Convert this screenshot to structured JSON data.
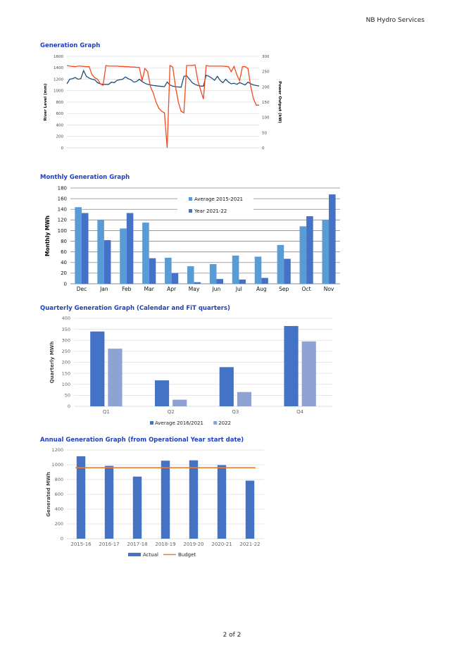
{
  "header": {
    "company": "NB Hydro Services"
  },
  "footer": {
    "page": "2 of 2"
  },
  "chart_data": [
    {
      "id": "gen",
      "type": "line",
      "title": "Generation Graph",
      "ylabel": "River Level (mm)",
      "y2label": "Power Output (kW)",
      "ylim": [
        0,
        1600
      ],
      "y2lim": [
        0,
        300
      ],
      "yticks": [
        0,
        200,
        400,
        600,
        800,
        1000,
        1200,
        1400,
        1600
      ],
      "y2ticks": [
        0,
        50,
        100,
        150,
        200,
        250,
        300
      ],
      "series": [
        {
          "name": "River Level",
          "axis": "left",
          "color": "#1f4e79",
          "values": [
            1120,
            1200,
            1210,
            1230,
            1200,
            1210,
            1350,
            1250,
            1220,
            1200,
            1190,
            1140,
            1120,
            1110,
            1110,
            1110,
            1150,
            1140,
            1180,
            1190,
            1200,
            1240,
            1210,
            1190,
            1150,
            1160,
            1200,
            1160,
            1130,
            1110,
            1100,
            1090,
            1085,
            1080,
            1075,
            1070,
            1150,
            1100,
            1080,
            1070,
            1065,
            1060,
            1250,
            1260,
            1200,
            1140,
            1110,
            1090,
            1080,
            1080,
            1270,
            1250,
            1220,
            1180,
            1250,
            1180,
            1140,
            1200,
            1150,
            1120,
            1130,
            1110,
            1140,
            1120,
            1100,
            1150,
            1120,
            1100,
            1090,
            1080
          ]
        },
        {
          "name": "Power Output",
          "axis": "right",
          "color": "#f24a1e",
          "values": [
            270,
            268,
            267,
            266,
            268,
            268,
            267,
            266,
            266,
            240,
            230,
            225,
            210,
            205,
            270,
            268,
            268,
            268,
            268,
            267,
            267,
            266,
            266,
            265,
            265,
            264,
            264,
            220,
            260,
            250,
            200,
            180,
            150,
            130,
            120,
            115,
            0,
            270,
            265,
            200,
            150,
            120,
            115,
            270,
            270,
            270,
            272,
            220,
            190,
            160,
            270,
            268,
            268,
            268,
            268,
            268,
            268,
            267,
            266,
            250,
            267,
            240,
            220,
            266,
            266,
            260,
            200,
            160,
            140,
            140
          ]
        }
      ]
    },
    {
      "id": "monthly",
      "type": "bar",
      "title": "Monthly Generation Graph",
      "ylabel": "Monthly MWh",
      "ylim": [
        0,
        180
      ],
      "yticks": [
        0,
        20,
        40,
        60,
        80,
        100,
        120,
        140,
        160,
        180
      ],
      "categories": [
        "Dec",
        "Jan",
        "Feb",
        "Mar",
        "Apr",
        "May",
        "Jun",
        "Jul",
        "Aug",
        "Sep",
        "Oct",
        "Nov"
      ],
      "legend": "top-center",
      "series": [
        {
          "name": "Average 2015-2021",
          "color": "#5b9bd5",
          "values": [
            144,
            120,
            104,
            115,
            49,
            33,
            37,
            53,
            51,
            73,
            108,
            120
          ]
        },
        {
          "name": "Year 2021-22",
          "color": "#4472c4",
          "values": [
            133,
            82,
            133,
            48,
            20,
            3,
            9,
            8,
            11,
            47,
            127,
            168
          ]
        }
      ]
    },
    {
      "id": "quarterly",
      "type": "bar",
      "title": "Quarterly Generation Graph (Calendar and FiT quarters)",
      "ylabel": "Quarterly MWh",
      "ylim": [
        0,
        400
      ],
      "yticks": [
        0,
        50,
        100,
        150,
        200,
        250,
        300,
        350,
        400
      ],
      "categories": [
        "Q1",
        "Q2",
        "Q3",
        "Q4"
      ],
      "legend": "bottom",
      "series": [
        {
          "name": "Average 2016/2021",
          "color": "#4472c4",
          "values": [
            340,
            118,
            178,
            365
          ]
        },
        {
          "name": "2022",
          "color": "#8fa2d4",
          "values": [
            262,
            30,
            65,
            295
          ]
        }
      ]
    },
    {
      "id": "annual",
      "type": "bar",
      "title": "Annual Generation Graph (from Operational Year start date)",
      "ylabel": "Generated MWh",
      "ylim": [
        0,
        1200
      ],
      "yticks": [
        0,
        200,
        400,
        600,
        800,
        1000,
        1200
      ],
      "categories": [
        "2015-16",
        "2016-17",
        "2017-18",
        "2018-19",
        "2019-20",
        "2020-21",
        "2021-22"
      ],
      "legend": "bottom",
      "series": [
        {
          "name": "Actual",
          "color": "#4472c4",
          "values": [
            1115,
            985,
            840,
            1055,
            1060,
            995,
            785
          ]
        }
      ],
      "budget": {
        "name": "Budget",
        "color": "#ed7d31",
        "value": 960
      }
    }
  ]
}
